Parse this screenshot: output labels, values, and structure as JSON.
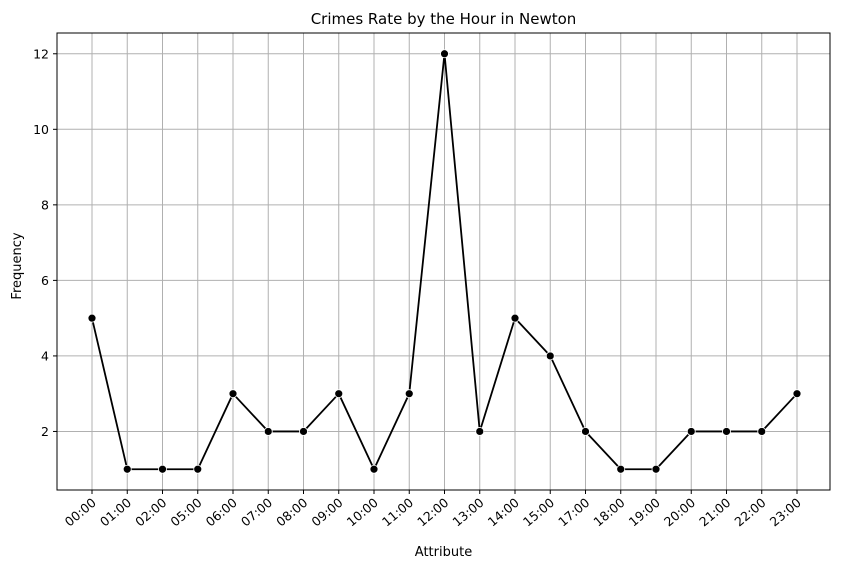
{
  "chart_data": {
    "type": "line",
    "title": "Crimes Rate by the Hour in Newton",
    "xlabel": "Attribute",
    "ylabel": "Frequency",
    "categories": [
      "00:00",
      "01:00",
      "02:00",
      "05:00",
      "06:00",
      "07:00",
      "08:00",
      "09:00",
      "10:00",
      "11:00",
      "12:00",
      "13:00",
      "14:00",
      "15:00",
      "17:00",
      "18:00",
      "19:00",
      "20:00",
      "21:00",
      "22:00",
      "23:00"
    ],
    "series": [
      {
        "values": [
          5,
          1,
          1,
          1,
          3,
          2,
          2,
          3,
          1,
          3,
          12,
          2,
          5,
          4,
          2,
          1,
          1,
          2,
          2,
          2,
          3
        ]
      }
    ],
    "ylim": [
      0.45,
      12.55
    ],
    "yticks": [
      2,
      4,
      6,
      8,
      10,
      12
    ],
    "grid": true,
    "line_color": "#000000",
    "marker_color": "#000000",
    "grid_color": "#b0b0b0"
  }
}
